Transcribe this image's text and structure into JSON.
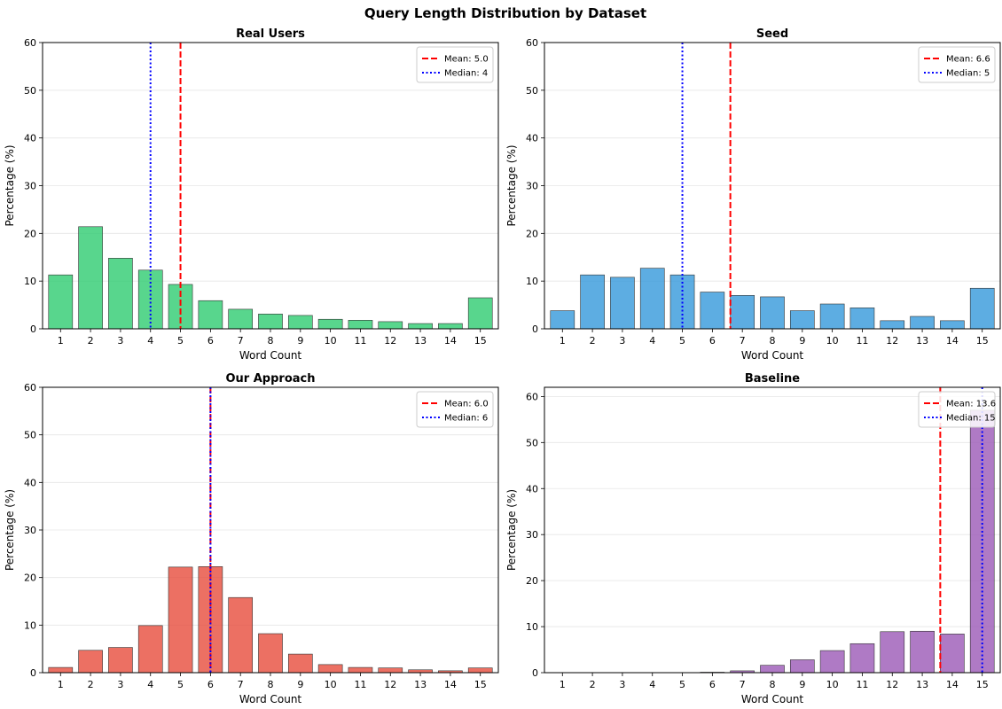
{
  "figure": {
    "title": "Query Length Distribution by Dataset"
  },
  "chart_data": [
    {
      "type": "bar",
      "title": "Real Users",
      "xlabel": "Word Count",
      "ylabel": "Percentage (%)",
      "categories": [
        1,
        2,
        3,
        4,
        5,
        6,
        7,
        8,
        9,
        10,
        11,
        12,
        13,
        14,
        15
      ],
      "values": [
        11.3,
        21.4,
        14.8,
        12.3,
        9.3,
        5.9,
        4.1,
        3.1,
        2.8,
        2.0,
        1.8,
        1.5,
        1.1,
        1.1,
        6.5
      ],
      "ylim": [
        0,
        60
      ],
      "yticks": [
        0,
        10,
        20,
        30,
        40,
        50,
        60
      ],
      "mean": 5.0,
      "median": 4,
      "legend": [
        "Mean: 5.0",
        "Median: 4"
      ],
      "legend_position": "top-right",
      "color": "#2ecc71",
      "grid": "y"
    },
    {
      "type": "bar",
      "title": "Seed",
      "xlabel": "Word Count",
      "ylabel": "Percentage (%)",
      "categories": [
        1,
        2,
        3,
        4,
        5,
        6,
        7,
        8,
        9,
        10,
        11,
        12,
        13,
        14,
        15
      ],
      "values": [
        3.8,
        11.3,
        10.8,
        12.7,
        11.3,
        7.7,
        7.0,
        6.7,
        3.8,
        5.2,
        4.4,
        1.7,
        2.6,
        1.7,
        8.5
      ],
      "ylim": [
        0,
        60
      ],
      "yticks": [
        0,
        10,
        20,
        30,
        40,
        50,
        60
      ],
      "mean": 6.6,
      "median": 5,
      "legend": [
        "Mean: 6.6",
        "Median: 5"
      ],
      "legend_position": "top-right",
      "color": "#3498db",
      "grid": "y"
    },
    {
      "type": "bar",
      "title": "Our Approach",
      "xlabel": "Word Count",
      "ylabel": "Percentage (%)",
      "categories": [
        1,
        2,
        3,
        4,
        5,
        6,
        7,
        8,
        9,
        10,
        11,
        12,
        13,
        14,
        15
      ],
      "values": [
        1.1,
        4.7,
        5.3,
        9.9,
        22.2,
        22.3,
        15.8,
        8.2,
        3.9,
        1.7,
        1.1,
        1.0,
        0.6,
        0.4,
        1.0
      ],
      "ylim": [
        0,
        60
      ],
      "yticks": [
        0,
        10,
        20,
        30,
        40,
        50,
        60
      ],
      "mean": 6.0,
      "median": 6,
      "legend": [
        "Mean: 6.0",
        "Median: 6"
      ],
      "legend_position": "top-right",
      "color": "#e74c3c",
      "grid": "y"
    },
    {
      "type": "bar",
      "title": "Baseline",
      "xlabel": "Word Count",
      "ylabel": "Percentage (%)",
      "categories": [
        1,
        2,
        3,
        4,
        5,
        6,
        7,
        8,
        9,
        10,
        11,
        12,
        13,
        14,
        15
      ],
      "values": [
        0.0,
        0.0,
        0.0,
        0.0,
        0.0,
        0.1,
        0.4,
        1.6,
        2.8,
        4.8,
        6.3,
        8.9,
        9.0,
        8.4,
        57.0
      ],
      "ylim": [
        0,
        62
      ],
      "yticks": [
        0,
        10,
        20,
        30,
        40,
        50,
        60
      ],
      "mean": 13.6,
      "median": 15,
      "legend": [
        "Mean: 13.6",
        "Median: 15"
      ],
      "legend_position": "top-right",
      "color": "#9b59b6",
      "grid": "y"
    }
  ],
  "colors": {
    "mean_line": "#ff0000",
    "median_line": "#0000ff",
    "grid": "#e6e6e6",
    "axis": "#000000"
  }
}
